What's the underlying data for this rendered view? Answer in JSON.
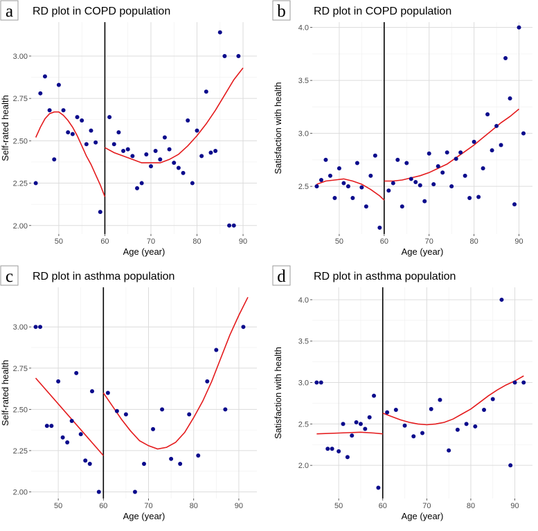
{
  "chart_data": [
    {
      "type": "scatter",
      "panel_label": "a",
      "title": "RD plot in COPD population",
      "xlabel": "Age (year)",
      "ylabel": "Self-rated health",
      "xlim": [
        44,
        93
      ],
      "ylim": [
        1.95,
        3.2
      ],
      "xticks": [
        50,
        60,
        70,
        80,
        90
      ],
      "yticks": [
        2.0,
        2.25,
        2.5,
        2.75,
        3.0
      ],
      "ytick_labels": [
        "2.00",
        "2.25",
        "2.50",
        "2.75",
        "3.00"
      ],
      "cutoff": 60,
      "points": [
        [
          45,
          2.25
        ],
        [
          46,
          2.78
        ],
        [
          47,
          2.88
        ],
        [
          48,
          2.68
        ],
        [
          49,
          2.39
        ],
        [
          50,
          2.83
        ],
        [
          51,
          2.68
        ],
        [
          52,
          2.55
        ],
        [
          53,
          2.54
        ],
        [
          54,
          2.64
        ],
        [
          55,
          2.62
        ],
        [
          56,
          2.48
        ],
        [
          57,
          2.56
        ],
        [
          58,
          2.49
        ],
        [
          59,
          2.08
        ],
        [
          61,
          2.64
        ],
        [
          62,
          2.48
        ],
        [
          63,
          2.55
        ],
        [
          64,
          2.44
        ],
        [
          65,
          2.45
        ],
        [
          66,
          2.41
        ],
        [
          67,
          2.22
        ],
        [
          68,
          2.25
        ],
        [
          69,
          2.42
        ],
        [
          70,
          2.35
        ],
        [
          71,
          2.44
        ],
        [
          72,
          2.39
        ],
        [
          73,
          2.52
        ],
        [
          74,
          2.45
        ],
        [
          75,
          2.37
        ],
        [
          76,
          2.34
        ],
        [
          77,
          2.31
        ],
        [
          78,
          2.62
        ],
        [
          79,
          2.25
        ],
        [
          80,
          2.56
        ],
        [
          81,
          2.41
        ],
        [
          82,
          2.79
        ],
        [
          83,
          2.43
        ],
        [
          84,
          2.44
        ],
        [
          85,
          3.14
        ],
        [
          86,
          3.0
        ],
        [
          87,
          2.0
        ],
        [
          88,
          2.0
        ],
        [
          89,
          3.0
        ]
      ],
      "fit_left": [
        [
          45,
          2.52
        ],
        [
          46,
          2.58
        ],
        [
          47,
          2.63
        ],
        [
          48,
          2.66
        ],
        [
          49,
          2.67
        ],
        [
          50,
          2.67
        ],
        [
          51,
          2.65
        ],
        [
          52,
          2.62
        ],
        [
          53,
          2.58
        ],
        [
          54,
          2.53
        ],
        [
          55,
          2.47
        ],
        [
          56,
          2.41
        ],
        [
          57,
          2.36
        ],
        [
          58,
          2.3
        ],
        [
          59,
          2.24
        ],
        [
          60,
          2.17
        ]
      ],
      "fit_right": [
        [
          60,
          2.46
        ],
        [
          62,
          2.43
        ],
        [
          64,
          2.41
        ],
        [
          66,
          2.39
        ],
        [
          68,
          2.37
        ],
        [
          70,
          2.37
        ],
        [
          72,
          2.37
        ],
        [
          74,
          2.39
        ],
        [
          76,
          2.42
        ],
        [
          78,
          2.47
        ],
        [
          80,
          2.53
        ],
        [
          82,
          2.6
        ],
        [
          84,
          2.68
        ],
        [
          86,
          2.77
        ],
        [
          88,
          2.86
        ],
        [
          90,
          2.93
        ]
      ]
    },
    {
      "type": "scatter",
      "panel_label": "b",
      "title": "RD plot in COPD population",
      "xlabel": "Age (year)",
      "ylabel": "Satisfaction with health",
      "xlim": [
        44,
        93
      ],
      "ylim": [
        2.05,
        4.05
      ],
      "xticks": [
        50,
        60,
        70,
        80,
        90
      ],
      "yticks": [
        2.5,
        3.0,
        3.5,
        4.0
      ],
      "ytick_labels": [
        "2.5",
        "3.0",
        "3.5",
        "4.0"
      ],
      "cutoff": 60,
      "points": [
        [
          45,
          2.5
        ],
        [
          46,
          2.56
        ],
        [
          47,
          2.75
        ],
        [
          48,
          2.6
        ],
        [
          49,
          2.39
        ],
        [
          50,
          2.67
        ],
        [
          51,
          2.53
        ],
        [
          52,
          2.5
        ],
        [
          53,
          2.39
        ],
        [
          54,
          2.72
        ],
        [
          55,
          2.49
        ],
        [
          56,
          2.31
        ],
        [
          57,
          2.6
        ],
        [
          58,
          2.79
        ],
        [
          59,
          2.11
        ],
        [
          61,
          2.46
        ],
        [
          62,
          2.53
        ],
        [
          63,
          2.75
        ],
        [
          64,
          2.31
        ],
        [
          65,
          2.72
        ],
        [
          66,
          2.57
        ],
        [
          67,
          2.54
        ],
        [
          68,
          2.51
        ],
        [
          69,
          2.36
        ],
        [
          70,
          2.81
        ],
        [
          71,
          2.52
        ],
        [
          72,
          2.69
        ],
        [
          73,
          2.63
        ],
        [
          74,
          2.82
        ],
        [
          75,
          2.5
        ],
        [
          76,
          2.76
        ],
        [
          77,
          2.82
        ],
        [
          78,
          2.6
        ],
        [
          79,
          2.39
        ],
        [
          80,
          2.92
        ],
        [
          81,
          2.4
        ],
        [
          82,
          2.67
        ],
        [
          83,
          3.18
        ],
        [
          84,
          2.84
        ],
        [
          85,
          3.07
        ],
        [
          86,
          2.89
        ],
        [
          87,
          3.71
        ],
        [
          88,
          3.33
        ],
        [
          89,
          2.33
        ],
        [
          90,
          4.0
        ],
        [
          91,
          3.0
        ]
      ],
      "fit_left": [
        [
          45,
          2.52
        ],
        [
          47,
          2.55
        ],
        [
          49,
          2.56
        ],
        [
          51,
          2.57
        ],
        [
          53,
          2.55
        ],
        [
          55,
          2.52
        ],
        [
          57,
          2.47
        ],
        [
          59,
          2.41
        ],
        [
          60,
          2.37
        ]
      ],
      "fit_right": [
        [
          60,
          2.55
        ],
        [
          62,
          2.55
        ],
        [
          64,
          2.56
        ],
        [
          66,
          2.58
        ],
        [
          68,
          2.6
        ],
        [
          70,
          2.63
        ],
        [
          72,
          2.67
        ],
        [
          74,
          2.71
        ],
        [
          76,
          2.77
        ],
        [
          78,
          2.83
        ],
        [
          80,
          2.89
        ],
        [
          82,
          2.96
        ],
        [
          84,
          3.03
        ],
        [
          86,
          3.1
        ],
        [
          88,
          3.16
        ],
        [
          90,
          3.23
        ]
      ]
    },
    {
      "type": "scatter",
      "panel_label": "c",
      "title": "RD plot in asthma population",
      "xlabel": "Age (year)",
      "ylabel": "Self-rated health",
      "xlim": [
        44,
        94
      ],
      "ylim": [
        1.96,
        3.24
      ],
      "xticks": [
        50,
        60,
        70,
        80,
        90
      ],
      "yticks": [
        2.0,
        2.25,
        2.5,
        2.75,
        3.0
      ],
      "ytick_labels": [
        "2.00",
        "2.25",
        "2.50",
        "2.75",
        "3.00"
      ],
      "cutoff": 60,
      "points": [
        [
          45,
          3.0
        ],
        [
          46,
          3.0
        ],
        [
          47.5,
          2.4
        ],
        [
          48.5,
          2.4
        ],
        [
          50,
          2.67
        ],
        [
          51,
          2.33
        ],
        [
          52,
          2.3
        ],
        [
          53,
          2.43
        ],
        [
          54,
          2.72
        ],
        [
          55,
          2.35
        ],
        [
          56,
          2.19
        ],
        [
          57,
          2.17
        ],
        [
          57.5,
          2.61
        ],
        [
          59,
          2.0
        ],
        [
          61,
          2.6
        ],
        [
          63,
          2.49
        ],
        [
          65,
          2.47
        ],
        [
          67,
          2.0
        ],
        [
          69,
          2.17
        ],
        [
          71,
          2.38
        ],
        [
          73,
          2.5
        ],
        [
          75,
          2.2
        ],
        [
          77,
          2.17
        ],
        [
          79,
          2.47
        ],
        [
          81,
          2.22
        ],
        [
          83,
          2.67
        ],
        [
          85,
          2.86
        ],
        [
          87,
          2.5
        ],
        [
          91,
          3.0
        ]
      ],
      "fit_left": [
        [
          45,
          2.69
        ],
        [
          60,
          2.22
        ]
      ],
      "fit_right": [
        [
          60,
          2.6
        ],
        [
          62,
          2.52
        ],
        [
          64,
          2.44
        ],
        [
          66,
          2.37
        ],
        [
          68,
          2.31
        ],
        [
          70,
          2.28
        ],
        [
          72,
          2.26
        ],
        [
          74,
          2.27
        ],
        [
          76,
          2.3
        ],
        [
          78,
          2.36
        ],
        [
          80,
          2.45
        ],
        [
          82,
          2.55
        ],
        [
          84,
          2.67
        ],
        [
          86,
          2.81
        ],
        [
          88,
          2.95
        ],
        [
          90,
          3.07
        ],
        [
          92,
          3.18
        ]
      ]
    },
    {
      "type": "scatter",
      "panel_label": "d",
      "title": "RD plot in asthma population",
      "xlabel": "Age (year)",
      "ylabel": "Satisfaction with health",
      "xlim": [
        44,
        94
      ],
      "ylim": [
        1.6,
        4.15
      ],
      "xticks": [
        50,
        60,
        70,
        80,
        90
      ],
      "yticks": [
        2.0,
        2.5,
        3.0,
        3.5,
        4.0
      ],
      "ytick_labels": [
        "2.0",
        "2.5",
        "3.0",
        "3.5",
        "4.0"
      ],
      "cutoff": 60,
      "points": [
        [
          45,
          3.0
        ],
        [
          46,
          3.0
        ],
        [
          47.5,
          2.2
        ],
        [
          48.5,
          2.2
        ],
        [
          50,
          2.17
        ],
        [
          51,
          2.5
        ],
        [
          52,
          2.1
        ],
        [
          53,
          2.36
        ],
        [
          54,
          2.52
        ],
        [
          55,
          2.5
        ],
        [
          56,
          2.44
        ],
        [
          57,
          2.58
        ],
        [
          58,
          2.84
        ],
        [
          59,
          1.73
        ],
        [
          61,
          2.64
        ],
        [
          63,
          2.67
        ],
        [
          65,
          2.48
        ],
        [
          67,
          2.35
        ],
        [
          69,
          2.39
        ],
        [
          71,
          2.68
        ],
        [
          73,
          2.79
        ],
        [
          75,
          2.18
        ],
        [
          77,
          2.43
        ],
        [
          79,
          2.5
        ],
        [
          81,
          2.47
        ],
        [
          83,
          2.67
        ],
        [
          85,
          2.8
        ],
        [
          87,
          4.0
        ],
        [
          89,
          2.0
        ],
        [
          90,
          3.0
        ],
        [
          92,
          3.0
        ]
      ],
      "fit_left": [
        [
          45,
          2.38
        ],
        [
          50,
          2.39
        ],
        [
          55,
          2.4
        ],
        [
          58,
          2.39
        ],
        [
          60,
          2.38
        ]
      ],
      "fit_right": [
        [
          60,
          2.63
        ],
        [
          62,
          2.59
        ],
        [
          64,
          2.55
        ],
        [
          66,
          2.52
        ],
        [
          68,
          2.5
        ],
        [
          70,
          2.49
        ],
        [
          72,
          2.5
        ],
        [
          74,
          2.52
        ],
        [
          76,
          2.56
        ],
        [
          78,
          2.62
        ],
        [
          80,
          2.68
        ],
        [
          82,
          2.76
        ],
        [
          84,
          2.84
        ],
        [
          86,
          2.91
        ],
        [
          88,
          2.97
        ],
        [
          90,
          3.02
        ],
        [
          92,
          3.08
        ]
      ]
    }
  ],
  "style": {
    "point_color": "#0b0b8c",
    "fit_color": "#e41a1c",
    "cutoff_color": "#000000",
    "grid_major": "#dcdcdc",
    "grid_minor": "#efefef",
    "axis_text_color": "#4d4d4d",
    "title_color": "#000000"
  }
}
